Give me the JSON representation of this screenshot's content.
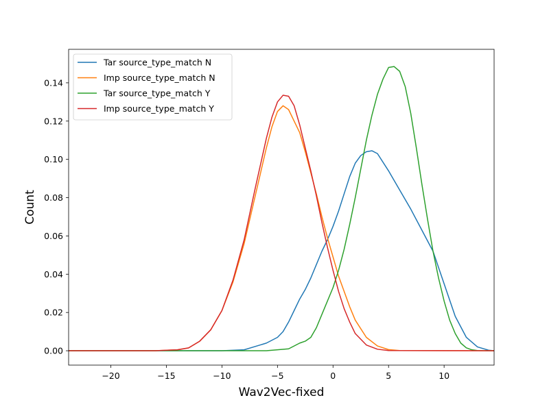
{
  "chart_data": {
    "type": "line",
    "title": "",
    "xlabel": "Wav2Vec-fixed",
    "ylabel": "Count",
    "xlim": [
      -23.8,
      14.5
    ],
    "ylim": [
      -0.0075,
      0.1575
    ],
    "xticks": [
      -20,
      -15,
      -10,
      -5,
      0,
      5,
      10
    ],
    "xtick_labels": [
      "−20",
      "−15",
      "−10",
      "−5",
      "0",
      "5",
      "10"
    ],
    "yticks": [
      0.0,
      0.02,
      0.04,
      0.06,
      0.08,
      0.1,
      0.12,
      0.14
    ],
    "ytick_labels": [
      "0.00",
      "0.02",
      "0.04",
      "0.06",
      "0.08",
      "0.10",
      "0.12",
      "0.14"
    ],
    "grid": false,
    "legend_position": "top-left",
    "series": [
      {
        "name": "Tar source_type_match N",
        "color": "#1f77b4",
        "x": [
          -23.8,
          -10,
          -8,
          -6,
          -5,
          -4.5,
          -4,
          -3.5,
          -3,
          -2.5,
          -2,
          -1.5,
          -1,
          -0.5,
          0,
          0.5,
          1,
          1.5,
          2,
          2.5,
          3,
          3.5,
          4,
          5,
          6,
          7,
          8,
          9,
          10,
          11,
          12,
          13,
          14,
          14.5
        ],
        "y": [
          0,
          0,
          0.0005,
          0.004,
          0.007,
          0.01,
          0.015,
          0.021,
          0.027,
          0.032,
          0.038,
          0.045,
          0.052,
          0.058,
          0.065,
          0.073,
          0.082,
          0.091,
          0.098,
          0.102,
          0.104,
          0.1045,
          0.103,
          0.094,
          0.084,
          0.074,
          0.063,
          0.052,
          0.035,
          0.018,
          0.007,
          0.002,
          0.0003,
          0
        ]
      },
      {
        "name": "Imp source_type_match N",
        "color": "#ff7f0e",
        "x": [
          -23.8,
          -16,
          -14,
          -13,
          -12,
          -11,
          -10,
          -9,
          -8,
          -7,
          -6,
          -5.5,
          -5,
          -4.5,
          -4,
          -3.5,
          -3,
          -2.5,
          -2,
          -1.5,
          -1,
          -0.5,
          0,
          0.5,
          1,
          1.5,
          2,
          3,
          4,
          5,
          6,
          14.5
        ],
        "y": [
          0,
          0,
          0.0005,
          0.0015,
          0.005,
          0.011,
          0.021,
          0.036,
          0.056,
          0.081,
          0.106,
          0.117,
          0.125,
          0.128,
          0.126,
          0.12,
          0.114,
          0.104,
          0.093,
          0.082,
          0.07,
          0.059,
          0.049,
          0.039,
          0.031,
          0.023,
          0.016,
          0.007,
          0.0025,
          0.0006,
          0.0001,
          0
        ]
      },
      {
        "name": "Tar source_type_match Y",
        "color": "#2ca02c",
        "x": [
          -23.8,
          -6,
          -4,
          -3,
          -2.5,
          -2,
          -1.5,
          -1,
          0,
          0.5,
          1,
          1.5,
          2,
          2.5,
          3,
          3.5,
          4,
          4.5,
          5,
          5.5,
          6,
          6.5,
          7,
          7.5,
          8,
          8.5,
          9,
          9.5,
          10,
          10.5,
          11,
          11.5,
          12,
          12.5,
          13,
          14.5
        ],
        "y": [
          0,
          0,
          0.001,
          0.004,
          0.005,
          0.007,
          0.012,
          0.019,
          0.033,
          0.042,
          0.053,
          0.066,
          0.08,
          0.095,
          0.11,
          0.123,
          0.134,
          0.142,
          0.148,
          0.1485,
          0.146,
          0.138,
          0.124,
          0.106,
          0.087,
          0.069,
          0.052,
          0.038,
          0.026,
          0.016,
          0.009,
          0.004,
          0.0015,
          0.0005,
          0.0001,
          0
        ]
      },
      {
        "name": "Imp source_type_match Y",
        "color": "#d62728",
        "x": [
          -23.8,
          -16,
          -14,
          -13,
          -12,
          -11,
          -10,
          -9,
          -8,
          -7,
          -6,
          -5.5,
          -5,
          -4.5,
          -4,
          -3.5,
          -3,
          -2.5,
          -2,
          -1.5,
          -1,
          -0.5,
          0,
          0.5,
          1,
          1.5,
          2,
          3,
          4,
          5,
          14.5
        ],
        "y": [
          0,
          0,
          0.0005,
          0.0015,
          0.005,
          0.011,
          0.021,
          0.037,
          0.058,
          0.085,
          0.111,
          0.122,
          0.13,
          0.1335,
          0.133,
          0.128,
          0.118,
          0.106,
          0.094,
          0.081,
          0.067,
          0.054,
          0.042,
          0.031,
          0.022,
          0.015,
          0.009,
          0.003,
          0.0008,
          0.0001,
          0
        ]
      }
    ]
  }
}
